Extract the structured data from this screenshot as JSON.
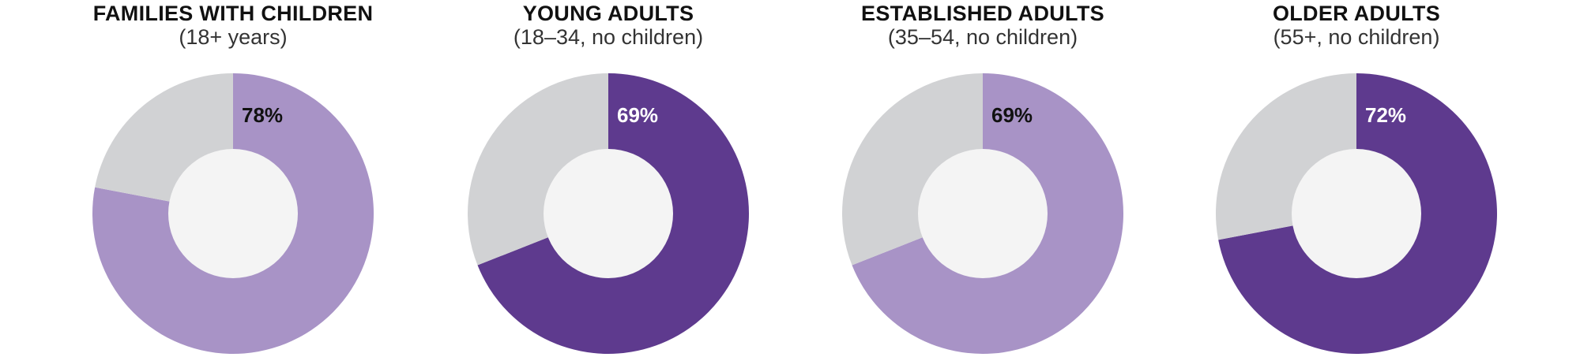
{
  "chart_data": [
    {
      "type": "pie",
      "title": "FAMILIES WITH CHILDREN",
      "subtitle": "(18+ years)",
      "values": [
        78,
        22
      ],
      "labels": [
        "78%",
        ""
      ],
      "colors": [
        "#a893c6",
        "#d1d2d4"
      ],
      "label_color": "#111111"
    },
    {
      "type": "pie",
      "title": "YOUNG ADULTS",
      "subtitle": "(18–34, no children)",
      "values": [
        69,
        31
      ],
      "labels": [
        "69%",
        ""
      ],
      "colors": [
        "#5e3a8e",
        "#d1d2d4"
      ],
      "label_color": "#ffffff"
    },
    {
      "type": "pie",
      "title": "ESTABLISHED ADULTS",
      "subtitle": "(35–54, no children)",
      "values": [
        69,
        31
      ],
      "labels": [
        "69%",
        ""
      ],
      "colors": [
        "#a893c6",
        "#d1d2d4"
      ],
      "label_color": "#111111"
    },
    {
      "type": "pie",
      "title": "OLDER ADULTS",
      "subtitle": "(55+, no children)",
      "values": [
        72,
        28
      ],
      "labels": [
        "72%",
        ""
      ],
      "colors": [
        "#5e3a8e",
        "#d1d2d4"
      ],
      "label_color": "#ffffff"
    }
  ],
  "colors": {
    "hole": "#f4f4f4",
    "background": "#ffffff"
  }
}
